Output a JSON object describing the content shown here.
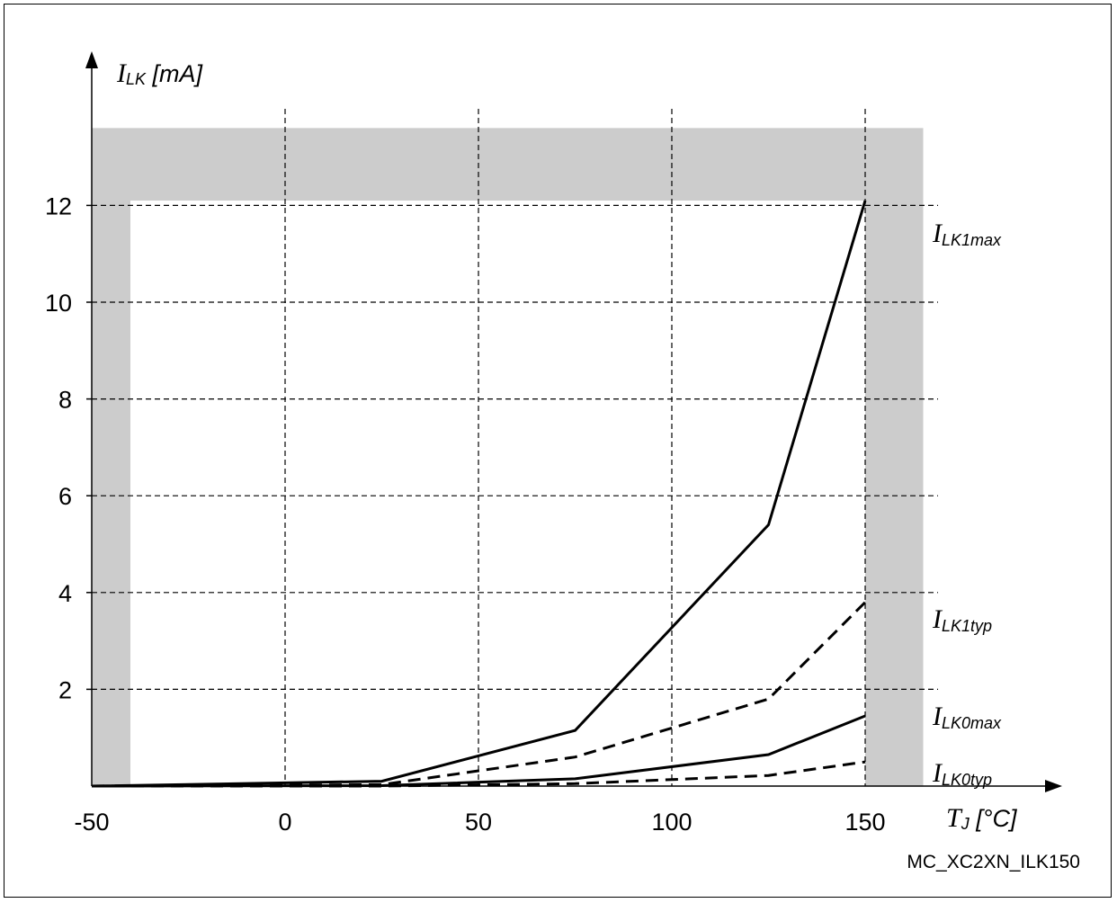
{
  "chart_data": {
    "type": "line",
    "xlabel": {
      "main": "T",
      "sub": "J",
      "unit": " [°C]"
    },
    "ylabel": {
      "main": "I",
      "sub": "LK",
      "unit": " [mA]"
    },
    "xlim": [
      -50,
      162
    ],
    "ylim": [
      0,
      14
    ],
    "xticks": [
      -50,
      0,
      50,
      100,
      150
    ],
    "yticks": [
      2,
      4,
      6,
      8,
      10,
      12
    ],
    "x_tick_labels": [
      "-50",
      "0",
      "50",
      "100",
      "150"
    ],
    "y_tick_labels": [
      "2",
      "4",
      "6",
      "8",
      "10",
      "12"
    ],
    "grid": true,
    "operating_range": {
      "t_min": -40,
      "t_max": 165,
      "i_max": 13.6,
      "i_inner": 12.1
    },
    "series": [
      {
        "name": "I",
        "sub": "LK1max",
        "style": "solid",
        "x": [
          -50,
          25,
          75,
          125,
          150
        ],
        "y": [
          0.0,
          0.1,
          1.15,
          5.4,
          12.1
        ]
      },
      {
        "name": "I",
        "sub": "LK1typ",
        "style": "dashed",
        "x": [
          -50,
          25,
          75,
          125,
          150
        ],
        "y": [
          0.0,
          0.03,
          0.6,
          1.8,
          3.8
        ]
      },
      {
        "name": "I",
        "sub": "LK0max",
        "style": "solid",
        "x": [
          -50,
          25,
          75,
          125,
          150
        ],
        "y": [
          0.0,
          0.01,
          0.15,
          0.65,
          1.45
        ]
      },
      {
        "name": "I",
        "sub": "LK0typ",
        "style": "dashed",
        "x": [
          -50,
          25,
          75,
          125,
          150
        ],
        "y": [
          0.0,
          0.0,
          0.05,
          0.22,
          0.5
        ]
      }
    ]
  },
  "figure_code": "MC_XC2XN_ILK150",
  "colors": {
    "operating_band": "#cccccc",
    "line": "#000000"
  }
}
